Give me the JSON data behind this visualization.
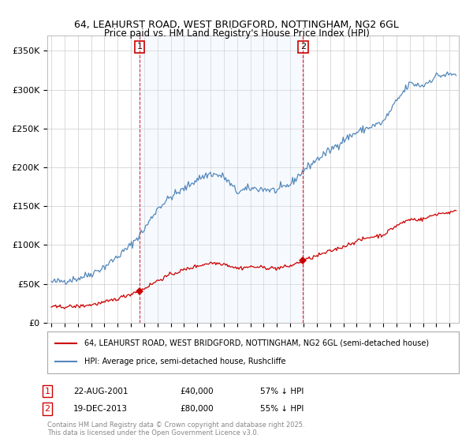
{
  "title": "64, LEAHURST ROAD, WEST BRIDGFORD, NOTTINGHAM, NG2 6GL",
  "subtitle": "Price paid vs. HM Land Registry's House Price Index (HPI)",
  "legend_line1": "64, LEAHURST ROAD, WEST BRIDGFORD, NOTTINGHAM, NG2 6GL (semi-detached house)",
  "legend_line2": "HPI: Average price, semi-detached house, Rushcliffe",
  "footer": "Contains HM Land Registry data © Crown copyright and database right 2025.\nThis data is licensed under the Open Government Licence v3.0.",
  "annotation1_label": "1",
  "annotation1_date": "22-AUG-2001",
  "annotation1_price": "£40,000",
  "annotation1_hpi": "57% ↓ HPI",
  "annotation2_label": "2",
  "annotation2_date": "19-DEC-2013",
  "annotation2_price": "£80,000",
  "annotation2_hpi": "55% ↓ HPI",
  "red_color": "#cc0000",
  "blue_color": "#5588bb",
  "shade_color": "#ddeeff",
  "background_color": "#ffffff",
  "grid_color": "#cccccc",
  "ylim": [
    0,
    370000
  ],
  "yticks": [
    0,
    50000,
    100000,
    150000,
    200000,
    250000,
    300000,
    350000
  ],
  "ytick_labels": [
    "£0",
    "£50K",
    "£100K",
    "£150K",
    "£200K",
    "£250K",
    "£300K",
    "£350K"
  ],
  "sale1_x": 2001.64,
  "sale1_y": 40000,
  "sale2_x": 2013.97,
  "sale2_y": 80000,
  "vline1_x": 2001.64,
  "vline2_x": 2013.97,
  "xmin": 1995.0,
  "xmax": 2025.7
}
